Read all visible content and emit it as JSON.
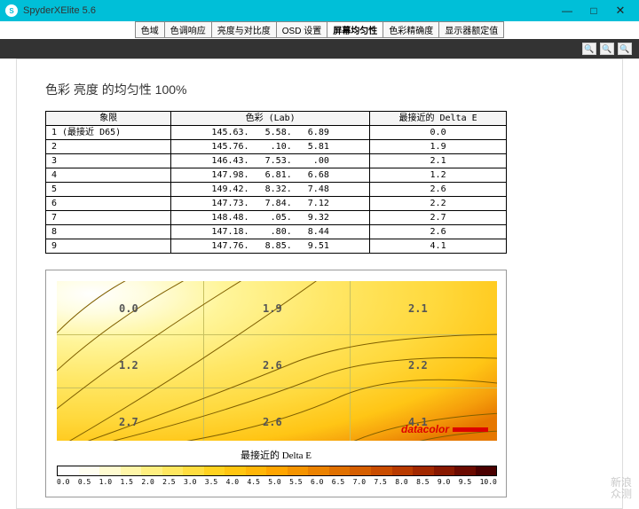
{
  "titlebar": {
    "icon": "S",
    "title": "SpyderXElite 5.6",
    "min": "—",
    "max": "□",
    "close": "✕"
  },
  "tabs": [
    "色域",
    "色调响应",
    "亮度与对比度",
    "OSD 设置",
    "屏幕均匀性",
    "色彩精确度",
    "显示器额定值"
  ],
  "activeTab": 4,
  "heading": "色彩 亮度 的均匀性 100%",
  "table": {
    "headers": [
      "象限",
      "色彩 (Lab)",
      "最接近的 Delta E"
    ],
    "rows": [
      [
        "1 (最接近 D65)",
        "145.63.   5.58.   6.89",
        "0.0"
      ],
      [
        "2",
        "145.76.    .10.   5.81",
        "1.9"
      ],
      [
        "3",
        "146.43.   7.53.    .00",
        "2.1"
      ],
      [
        "4",
        "147.98.   6.81.   6.68",
        "1.2"
      ],
      [
        "5",
        "149.42.   8.32.   7.48",
        "2.6"
      ],
      [
        "6",
        "147.73.   7.84.   7.12",
        "2.2"
      ],
      [
        "7",
        "148.48.    .05.   9.32",
        "2.7"
      ],
      [
        "8",
        "147.18.    .80.   8.44",
        "2.6"
      ],
      [
        "9",
        "147.76.   8.85.   9.51",
        "4.1"
      ]
    ]
  },
  "contour": {
    "title": "最接近的 Delta E",
    "zoneValues": [
      "0.0",
      "1.9",
      "2.1",
      "1.2",
      "2.6",
      "2.2",
      "2.7",
      "2.6",
      "4.1"
    ],
    "zonePositions": [
      [
        70,
        24
      ],
      [
        232,
        24
      ],
      [
        396,
        24
      ],
      [
        70,
        88
      ],
      [
        232,
        88
      ],
      [
        396,
        88
      ],
      [
        70,
        152
      ],
      [
        232,
        152
      ],
      [
        396,
        152
      ]
    ],
    "brand": "datacolor",
    "bgStops": [
      {
        "c": "#ffffff",
        "p": 0
      },
      {
        "c": "#fffde0",
        "p": 10
      },
      {
        "c": "#fff59a",
        "p": 25
      },
      {
        "c": "#ffe766",
        "p": 45
      },
      {
        "c": "#ffd93d",
        "p": 65
      },
      {
        "c": "#ffc515",
        "p": 82
      },
      {
        "c": "#f59e0b",
        "p": 92
      },
      {
        "c": "#e67700",
        "p": 100
      }
    ],
    "ticks": [
      "0.0",
      "0.5",
      "1.0",
      "1.5",
      "2.0",
      "2.5",
      "3.0",
      "3.5",
      "4.0",
      "4.5",
      "5.0",
      "5.5",
      "6.0",
      "6.5",
      "7.0",
      "7.5",
      "8.0",
      "8.5",
      "9.0",
      "9.5",
      "10.0"
    ],
    "cbarColors": [
      "#ffffff",
      "#fffef0",
      "#fffbd0",
      "#fff6a8",
      "#ffef80",
      "#ffe760",
      "#ffdd40",
      "#ffd220",
      "#ffc510",
      "#ffb608",
      "#ffa500",
      "#f59400",
      "#eb8200",
      "#e07000",
      "#d55e00",
      "#c94c00",
      "#b83a00",
      "#a22800",
      "#881800",
      "#6b0a00",
      "#4a0000"
    ]
  },
  "watermark": {
    "l1": "新浪",
    "l2": "众测"
  }
}
